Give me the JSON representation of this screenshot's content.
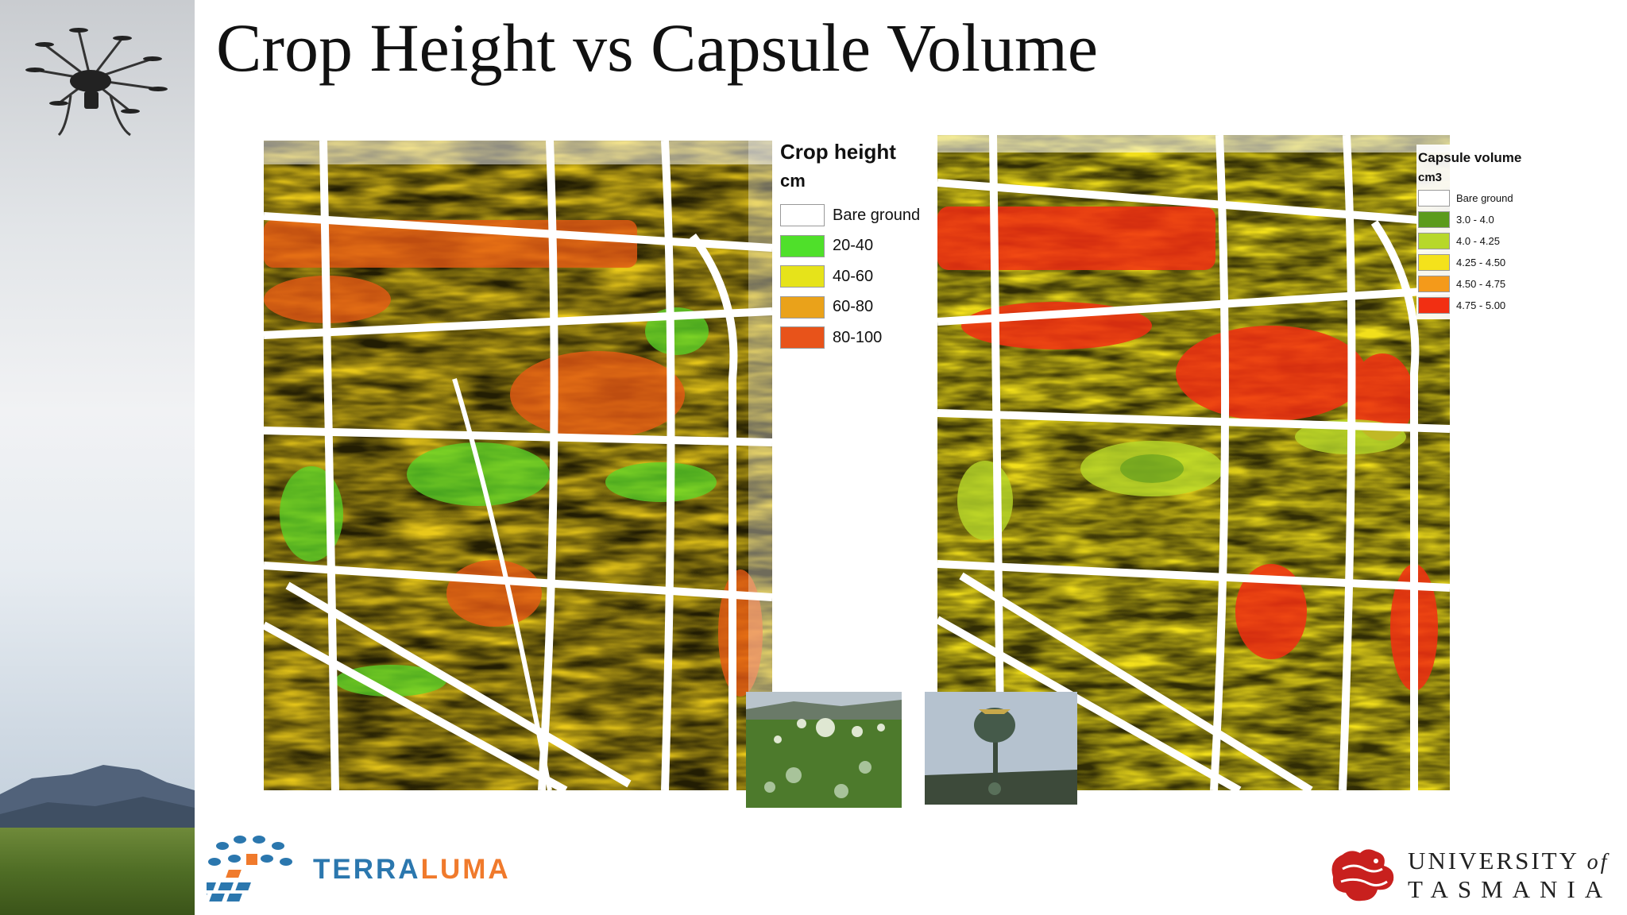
{
  "slide": {
    "title": "Crop Height vs Capsule Volume"
  },
  "legend_crop_height": {
    "title": "Crop height",
    "unit": "cm",
    "items": [
      {
        "label": "Bare ground",
        "color": "#ffffff"
      },
      {
        "label": "20-40",
        "color": "#4fe02a"
      },
      {
        "label": "40-60",
        "color": "#e6e31a"
      },
      {
        "label": "60-80",
        "color": "#eaa21a"
      },
      {
        "label": "80-100",
        "color": "#e8531a"
      }
    ]
  },
  "legend_capsule_volume": {
    "title": "Capsule volume",
    "unit": "cm3",
    "items": [
      {
        "label": "Bare ground",
        "color": "#ffffff"
      },
      {
        "label": "3.0 - 4.0",
        "color": "#5c9b1c"
      },
      {
        "label": "4.0 - 4.25",
        "color": "#b7d82a"
      },
      {
        "label": "4.25 - 4.50",
        "color": "#f4e21b"
      },
      {
        "label": "4.50 - 4.75",
        "color": "#f49a1a"
      },
      {
        "label": "4.75 - 5.00",
        "color": "#f22f12"
      }
    ]
  },
  "logos": {
    "terraluma_part1": "TERRA",
    "terraluma_part2": "LUMA",
    "university_line1": "UNIVERSITY",
    "university_of": "of",
    "university_line2": "TASMANIA"
  }
}
